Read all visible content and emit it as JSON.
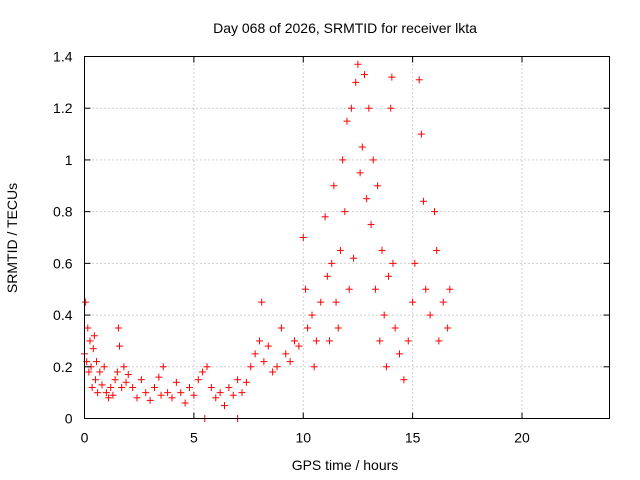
{
  "chart_data": {
    "type": "scatter",
    "title": "Day 068 of 2026, SRMTID for receiver lkta",
    "xlabel": "GPS time / hours",
    "ylabel": "SRMTID / TECUs",
    "xlim": [
      0,
      24
    ],
    "ylim": [
      0,
      1.4
    ],
    "x_ticks": [
      0,
      5,
      10,
      15,
      20
    ],
    "x_tick_labels": [
      "0",
      "5",
      "10",
      "15",
      "20"
    ],
    "y_ticks": [
      0,
      0.2,
      0.4,
      0.6,
      0.8,
      1.0,
      1.2,
      1.4
    ],
    "y_tick_labels": [
      "0",
      "0.2",
      "0.4",
      "0.6",
      "0.8",
      "1",
      "1.2",
      "1.4"
    ],
    "grid": true,
    "marker": "plus",
    "color": "#ff0000",
    "series": [
      {
        "name": "SRMTID",
        "points": [
          [
            0.0,
            0.25
          ],
          [
            0.05,
            0.45
          ],
          [
            0.1,
            0.22
          ],
          [
            0.15,
            0.35
          ],
          [
            0.2,
            0.18
          ],
          [
            0.25,
            0.3
          ],
          [
            0.3,
            0.2
          ],
          [
            0.35,
            0.12
          ],
          [
            0.4,
            0.27
          ],
          [
            0.45,
            0.32
          ],
          [
            0.5,
            0.15
          ],
          [
            0.55,
            0.22
          ],
          [
            0.6,
            0.1
          ],
          [
            0.7,
            0.18
          ],
          [
            0.8,
            0.13
          ],
          [
            0.9,
            0.2
          ],
          [
            1.0,
            0.1
          ],
          [
            1.1,
            0.08
          ],
          [
            1.2,
            0.12
          ],
          [
            1.3,
            0.09
          ],
          [
            1.4,
            0.15
          ],
          [
            1.5,
            0.18
          ],
          [
            1.55,
            0.35
          ],
          [
            1.6,
            0.28
          ],
          [
            1.7,
            0.12
          ],
          [
            1.8,
            0.2
          ],
          [
            1.9,
            0.14
          ],
          [
            2.0,
            0.17
          ],
          [
            2.2,
            0.12
          ],
          [
            2.4,
            0.08
          ],
          [
            2.6,
            0.15
          ],
          [
            2.8,
            0.1
          ],
          [
            3.0,
            0.07
          ],
          [
            3.2,
            0.12
          ],
          [
            3.4,
            0.16
          ],
          [
            3.5,
            0.09
          ],
          [
            3.6,
            0.2
          ],
          [
            3.8,
            0.1
          ],
          [
            4.0,
            0.08
          ],
          [
            4.2,
            0.14
          ],
          [
            4.4,
            0.1
          ],
          [
            4.6,
            0.06
          ],
          [
            4.8,
            0.12
          ],
          [
            5.0,
            0.09
          ],
          [
            5.2,
            0.15
          ],
          [
            5.4,
            0.18
          ],
          [
            5.5,
            0.0
          ],
          [
            5.6,
            0.2
          ],
          [
            5.8,
            0.12
          ],
          [
            6.0,
            0.08
          ],
          [
            6.2,
            0.1
          ],
          [
            6.4,
            0.05
          ],
          [
            6.6,
            0.12
          ],
          [
            6.8,
            0.09
          ],
          [
            7.0,
            0.0
          ],
          [
            7.0,
            0.15
          ],
          [
            7.2,
            0.1
          ],
          [
            7.4,
            0.14
          ],
          [
            7.6,
            0.2
          ],
          [
            7.8,
            0.25
          ],
          [
            8.0,
            0.3
          ],
          [
            8.1,
            0.45
          ],
          [
            8.2,
            0.22
          ],
          [
            8.4,
            0.28
          ],
          [
            8.6,
            0.18
          ],
          [
            8.8,
            0.2
          ],
          [
            9.0,
            0.35
          ],
          [
            9.2,
            0.25
          ],
          [
            9.4,
            0.22
          ],
          [
            9.6,
            0.3
          ],
          [
            9.8,
            0.28
          ],
          [
            10.0,
            0.7
          ],
          [
            10.1,
            0.5
          ],
          [
            10.2,
            0.35
          ],
          [
            10.4,
            0.4
          ],
          [
            10.5,
            0.2
          ],
          [
            10.6,
            0.3
          ],
          [
            10.8,
            0.45
          ],
          [
            11.0,
            0.78
          ],
          [
            11.1,
            0.55
          ],
          [
            11.2,
            0.3
          ],
          [
            11.3,
            0.6
          ],
          [
            11.4,
            0.9
          ],
          [
            11.5,
            0.45
          ],
          [
            11.6,
            0.35
          ],
          [
            11.7,
            0.65
          ],
          [
            11.8,
            1.0
          ],
          [
            11.9,
            0.8
          ],
          [
            12.0,
            1.15
          ],
          [
            12.1,
            0.5
          ],
          [
            12.2,
            1.2
          ],
          [
            12.3,
            0.62
          ],
          [
            12.4,
            1.3
          ],
          [
            12.5,
            1.37
          ],
          [
            12.6,
            0.95
          ],
          [
            12.7,
            1.05
          ],
          [
            12.8,
            1.33
          ],
          [
            12.9,
            0.85
          ],
          [
            13.0,
            1.2
          ],
          [
            13.1,
            0.75
          ],
          [
            13.2,
            1.0
          ],
          [
            13.3,
            0.5
          ],
          [
            13.4,
            0.9
          ],
          [
            13.5,
            0.3
          ],
          [
            13.6,
            0.65
          ],
          [
            13.7,
            0.4
          ],
          [
            13.8,
            0.2
          ],
          [
            13.9,
            0.55
          ],
          [
            14.0,
            1.2
          ],
          [
            14.05,
            1.32
          ],
          [
            14.1,
            0.6
          ],
          [
            14.2,
            0.35
          ],
          [
            14.4,
            0.25
          ],
          [
            14.6,
            0.15
          ],
          [
            14.8,
            0.3
          ],
          [
            15.0,
            0.45
          ],
          [
            15.1,
            0.6
          ],
          [
            15.3,
            1.31
          ],
          [
            15.4,
            1.1
          ],
          [
            15.5,
            0.84
          ],
          [
            15.6,
            0.5
          ],
          [
            15.8,
            0.4
          ],
          [
            16.0,
            0.8
          ],
          [
            16.1,
            0.65
          ],
          [
            16.2,
            0.3
          ],
          [
            16.4,
            0.45
          ],
          [
            16.6,
            0.35
          ],
          [
            16.7,
            0.5
          ]
        ]
      }
    ]
  }
}
